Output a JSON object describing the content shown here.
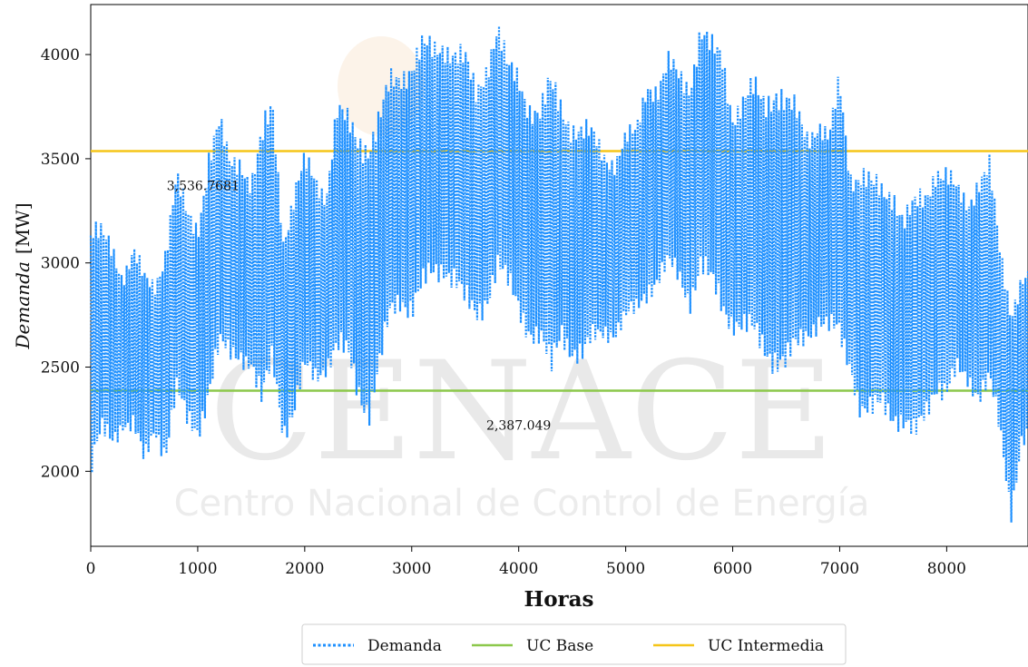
{
  "watermark": {
    "title": "CENACE",
    "subtitle": "Centro Nacional de Control de Energía"
  },
  "chart_data": {
    "type": "line",
    "title": "",
    "xlabel": "Horas",
    "ylabel": "Demanda [MW]",
    "xlim": [
      0,
      8760
    ],
    "ylim": [
      1640,
      4240
    ],
    "xticks": [
      0,
      1000,
      2000,
      3000,
      4000,
      5000,
      6000,
      7000,
      8000
    ],
    "yticks": [
      2000,
      2500,
      3000,
      3500,
      4000
    ],
    "grid": false,
    "legend_position": "bottom-center",
    "series": [
      {
        "name": "Demanda",
        "style": "dotted",
        "color": "#1e90ff",
        "hour_step": 100,
        "x": [
          0,
          100,
          200,
          300,
          400,
          500,
          600,
          700,
          800,
          900,
          1000,
          1100,
          1200,
          1300,
          1400,
          1500,
          1600,
          1700,
          1800,
          1900,
          2000,
          2100,
          2200,
          2300,
          2400,
          2500,
          2600,
          2700,
          2800,
          2900,
          3000,
          3100,
          3200,
          3300,
          3400,
          3500,
          3600,
          3700,
          3800,
          3900,
          4000,
          4100,
          4200,
          4300,
          4400,
          4500,
          4600,
          4700,
          4800,
          4900,
          5000,
          5100,
          5200,
          5300,
          5400,
          5500,
          5600,
          5700,
          5800,
          5900,
          6000,
          6100,
          6200,
          6300,
          6400,
          6500,
          6600,
          6700,
          6800,
          6900,
          7000,
          7100,
          7200,
          7300,
          7400,
          7500,
          7600,
          7700,
          7800,
          7900,
          8000,
          8100,
          8200,
          8300,
          8400,
          8500,
          8600,
          8700
        ],
        "max": [
          3230,
          3200,
          3150,
          3000,
          3120,
          2980,
          2950,
          3150,
          3480,
          3300,
          3250,
          3600,
          3740,
          3550,
          3580,
          3450,
          3680,
          3850,
          3200,
          3400,
          3550,
          3480,
          3400,
          3820,
          3750,
          3700,
          3680,
          3770,
          3950,
          4000,
          4050,
          4120,
          4100,
          4150,
          4100,
          4050,
          3900,
          4050,
          4220,
          4000,
          3980,
          3850,
          3800,
          3950,
          3850,
          3750,
          3700,
          3680,
          3600,
          3550,
          3650,
          3700,
          3960,
          3900,
          4020,
          3980,
          3950,
          4200,
          4100,
          4100,
          3800,
          3850,
          3920,
          3880,
          3950,
          3850,
          3800,
          3700,
          3750,
          3650,
          3960,
          3500,
          3520,
          3450,
          3420,
          3440,
          3280,
          3350,
          3400,
          3550,
          3500,
          3400,
          3350,
          3500,
          3540,
          3100,
          2850,
          3000
        ],
        "min": [
          1910,
          2100,
          2080,
          2180,
          2150,
          1960,
          2150,
          2020,
          2300,
          2150,
          2120,
          2300,
          2500,
          2480,
          2500,
          2450,
          2200,
          2450,
          2130,
          2200,
          2400,
          2380,
          2450,
          2500,
          2450,
          2300,
          2200,
          2400,
          2650,
          2750,
          2700,
          2780,
          2850,
          2900,
          2850,
          2700,
          2650,
          2750,
          2900,
          2800,
          2700,
          2600,
          2550,
          2350,
          2600,
          2500,
          2450,
          2550,
          2620,
          2600,
          2650,
          2700,
          2800,
          2850,
          2900,
          2850,
          2750,
          2900,
          2800,
          2700,
          2650,
          2600,
          2550,
          2500,
          2450,
          2400,
          2500,
          2600,
          2650,
          2600,
          2550,
          2450,
          2200,
          2170,
          2250,
          2200,
          2150,
          2050,
          2200,
          2350,
          2280,
          2400,
          2380,
          2300,
          2350,
          2100,
          1730,
          2100
        ]
      },
      {
        "name": "UC Base",
        "style": "solid",
        "color": "#8cc84b",
        "value": 2387.049,
        "label": "2,387.049",
        "label_x": 4000,
        "label_y": 2200
      },
      {
        "name": "UC Intermedia",
        "style": "solid",
        "color": "#f5c518",
        "value": 3536.7681,
        "label": "3,536.7681",
        "label_x": 1050,
        "label_y": 3350
      }
    ]
  }
}
